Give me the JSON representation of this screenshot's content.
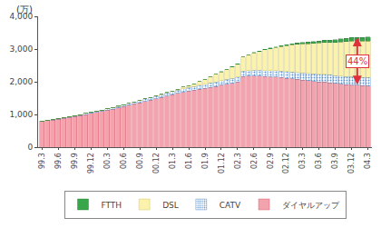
{
  "chart_data": {
    "type": "bar",
    "stacked": true,
    "grid": false,
    "legend": "bottom",
    "ylabel": "(万)",
    "annotation": "44%",
    "categories": [
      "99.3",
      null,
      null,
      "99.6",
      null,
      null,
      "99.9",
      null,
      null,
      "99.12",
      null,
      null,
      "00.3",
      null,
      null,
      "00.6",
      null,
      null,
      "00.9",
      null,
      null,
      "00.12",
      null,
      null,
      "01.3",
      null,
      null,
      "01.6",
      null,
      null,
      "01.9",
      null,
      null,
      "01.12",
      null,
      null,
      "02.3",
      null,
      null,
      "02.6",
      null,
      null,
      "02.9",
      null,
      null,
      "02.12",
      null,
      null,
      "03.3",
      null,
      null,
      "03.6",
      null,
      null,
      "03.9",
      null,
      null,
      "03.12",
      null,
      null,
      "04.3"
    ],
    "ylim": [
      0,
      4000
    ],
    "yticks": [
      0,
      {
        "value": 1000,
        "label": "1,000"
      },
      {
        "value": 2000,
        "label": "2,000"
      },
      {
        "value": 3000,
        "label": "3,000"
      },
      {
        "value": 4000,
        "label": "4,000"
      }
    ],
    "series": [
      {
        "name": "ダイヤルアップ",
        "color": "#f2a3ad",
        "values": [
          790,
          810,
          830,
          860,
          880,
          910,
          940,
          970,
          1000,
          1030,
          1060,
          1090,
          1130,
          1160,
          1200,
          1240,
          1280,
          1320,
          1360,
          1400,
          1440,
          1480,
          1520,
          1560,
          1600,
          1640,
          1680,
          1710,
          1740,
          1770,
          1800,
          1830,
          1860,
          1890,
          1920,
          1950,
          1990,
          2160,
          2170,
          2180,
          2170,
          2160,
          2150,
          2140,
          2130,
          2110,
          2090,
          2070,
          2050,
          2030,
          2010,
          2000,
          1990,
          1970,
          1950,
          1930,
          1910,
          1900,
          1890,
          1880,
          1870
        ]
      },
      {
        "name": "CATV",
        "color": "#b9d6f2",
        "values": [
          10,
          12,
          14,
          16,
          18,
          20,
          22,
          25,
          28,
          30,
          33,
          36,
          40,
          45,
          50,
          55,
          60,
          65,
          70,
          75,
          80,
          85,
          90,
          95,
          100,
          105,
          110,
          115,
          120,
          125,
          130,
          135,
          140,
          145,
          150,
          155,
          160,
          165,
          170,
          175,
          180,
          185,
          190,
          195,
          200,
          205,
          210,
          215,
          220,
          225,
          228,
          232,
          236,
          240,
          244,
          248,
          252,
          255,
          256,
          257,
          258
        ]
      },
      {
        "name": "DSL",
        "color": "#faf2ad",
        "values": [
          0,
          0,
          0,
          0,
          0,
          0,
          0,
          0,
          0,
          0,
          0,
          0,
          0,
          0,
          1,
          1,
          1,
          2,
          3,
          4,
          6,
          9,
          12,
          16,
          20,
          30,
          45,
          60,
          80,
          110,
          150,
          190,
          230,
          270,
          310,
          350,
          390,
          430,
          480,
          530,
          580,
          630,
          670,
          710,
          750,
          790,
          830,
          860,
          890,
          910,
          930,
          950,
          970,
          990,
          1010,
          1040,
          1070,
          1090,
          1100,
          1110,
          1120
        ]
      },
      {
        "name": "FTTH",
        "color": "#3aa64a",
        "values": [
          0,
          0,
          0,
          0,
          0,
          0,
          0,
          0,
          0,
          0,
          0,
          0,
          0,
          0,
          0,
          0,
          0,
          0,
          0,
          0,
          0,
          0,
          0,
          0,
          0,
          0,
          0,
          0,
          0,
          0,
          1,
          1,
          2,
          2,
          3,
          4,
          5,
          6,
          8,
          10,
          12,
          15,
          18,
          22,
          26,
          30,
          34,
          40,
          46,
          52,
          58,
          64,
          70,
          76,
          82,
          90,
          98,
          106,
          110,
          112,
          114
        ]
      }
    ]
  }
}
